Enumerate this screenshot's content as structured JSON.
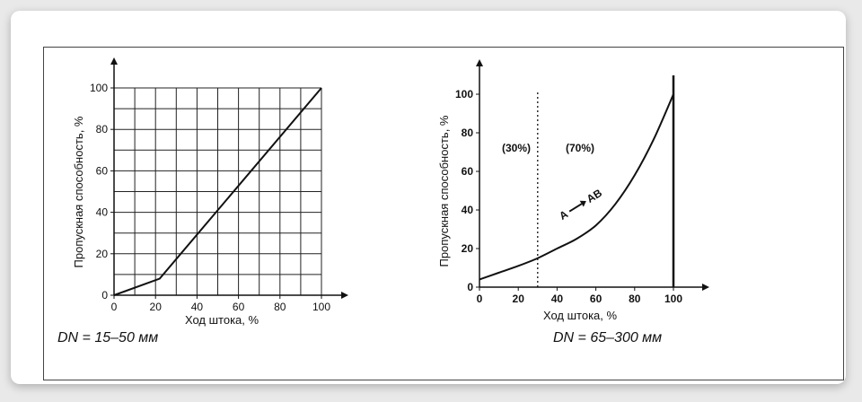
{
  "chart_data": [
    {
      "type": "line",
      "caption": "DN = 15–50 мм",
      "xlabel": "Ход штока, %",
      "ylabel": "Пропускная способность, %",
      "xlim": [
        0,
        100
      ],
      "ylim": [
        0,
        100
      ],
      "grid": true,
      "x_ticks": [
        "0",
        "20",
        "40",
        "60",
        "80",
        "100"
      ],
      "y_ticks": [
        "0",
        "20",
        "40",
        "60",
        "80",
        "100"
      ],
      "series": [
        {
          "x": [
            0,
            22,
            100
          ],
          "y": [
            0,
            8,
            100
          ]
        }
      ]
    },
    {
      "type": "line",
      "caption": "DN = 65–300 мм",
      "xlabel": "Ход штока, %",
      "ylabel": "Пропускная способность, %",
      "xlim": [
        0,
        100
      ],
      "ylim": [
        0,
        100
      ],
      "grid": false,
      "x_ticks": [
        "0",
        "20",
        "40",
        "60",
        "80",
        "100"
      ],
      "y_ticks": [
        "0",
        "20",
        "40",
        "60",
        "80",
        "100"
      ],
      "series": [
        {
          "x": [
            0,
            10,
            20,
            30,
            40,
            50,
            60,
            70,
            80,
            90,
            100
          ],
          "y": [
            4,
            7.5,
            11,
            15,
            20,
            25,
            32,
            43,
            58,
            77,
            100
          ]
        }
      ],
      "vline": 30,
      "annotations": {
        "region_left": "(30%)",
        "region_right": "(70%)",
        "flow_from": "A",
        "flow_to": "AB"
      }
    }
  ]
}
